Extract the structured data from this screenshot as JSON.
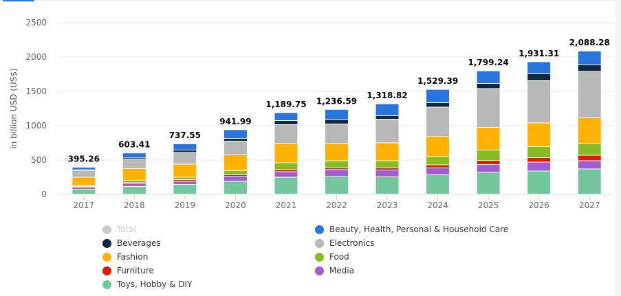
{
  "chart_data": {
    "type": "bar",
    "stacked": true,
    "title": "",
    "xlabel": "",
    "ylabel": "in billion USD (US$)",
    "ylim": [
      0,
      2500
    ],
    "yticks": [
      "0",
      "500",
      "1000",
      "1500",
      "2000",
      "2500"
    ],
    "grid": true,
    "legend_position": "bottom",
    "categories": [
      "2017",
      "2018",
      "2019",
      "2020",
      "2021",
      "2022",
      "2023",
      "2024",
      "2025",
      "2026",
      "2027"
    ],
    "totals": [
      395.26,
      603.41,
      737.55,
      941.99,
      1189.75,
      1236.59,
      1318.82,
      1529.39,
      1799.24,
      1931.31,
      2088.28
    ],
    "total_labels": [
      "395.26",
      "603.41",
      "737.55",
      "941.99",
      "1,189.75",
      "1,236.59",
      "1,318.82",
      "1,529.39",
      "1,799.24",
      "1,931.31",
      "2,088.28"
    ],
    "series": [
      {
        "name": "Toys, Hobby & DIY",
        "color": "#74c69d",
        "values": [
          75,
          115,
          145,
          190,
          250,
          260,
          255,
          285,
          320,
          340,
          370
        ]
      },
      {
        "name": "Media",
        "color": "#a25ccf",
        "values": [
          25,
          40,
          45,
          75,
          80,
          100,
          100,
          100,
          115,
          130,
          120
        ]
      },
      {
        "name": "Furniture",
        "color": "#dd1c00",
        "values": [
          15,
          20,
          25,
          20,
          30,
          25,
          30,
          45,
          60,
          65,
          80
        ]
      },
      {
        "name": "Food",
        "color": "#86bb22",
        "values": [
          15,
          30,
          35,
          60,
          100,
          105,
          105,
          120,
          150,
          160,
          170
        ]
      },
      {
        "name": "Fashion",
        "color": "#ffb100",
        "values": [
          120,
          170,
          190,
          230,
          280,
          250,
          260,
          295,
          330,
          345,
          375
        ]
      },
      {
        "name": "Electronics",
        "color": "#b8b8b8",
        "values": [
          95,
          130,
          170,
          200,
          275,
          285,
          345,
          425,
          565,
          615,
          675
        ]
      },
      {
        "name": "Beverages",
        "color": "#0f2740",
        "values": [
          15,
          25,
          35,
          40,
          60,
          65,
          50,
          65,
          75,
          100,
          100
        ]
      },
      {
        "name": "Beauty, Health, Personal & Household Care",
        "color": "#2876dd",
        "values": [
          35,
          73,
          92,
          127,
          115,
          147,
          174,
          194,
          184,
          176,
          198
        ]
      }
    ]
  },
  "legend": {
    "items": [
      {
        "name": "Total",
        "color": "#cccccc",
        "hidden": true
      },
      {
        "name": "Beauty, Health, Personal & Household Care",
        "color": "#2876dd",
        "hidden": false
      },
      {
        "name": "Beverages",
        "color": "#0f2740",
        "hidden": false
      },
      {
        "name": "Electronics",
        "color": "#b8b8b8",
        "hidden": false
      },
      {
        "name": "Fashion",
        "color": "#ffb100",
        "hidden": false
      },
      {
        "name": "Food",
        "color": "#86bb22",
        "hidden": false
      },
      {
        "name": "Furniture",
        "color": "#dd1c00",
        "hidden": false
      },
      {
        "name": "Media",
        "color": "#a25ccf",
        "hidden": false
      },
      {
        "name": "Toys, Hobby & DIY",
        "color": "#74c69d",
        "hidden": false
      }
    ]
  }
}
